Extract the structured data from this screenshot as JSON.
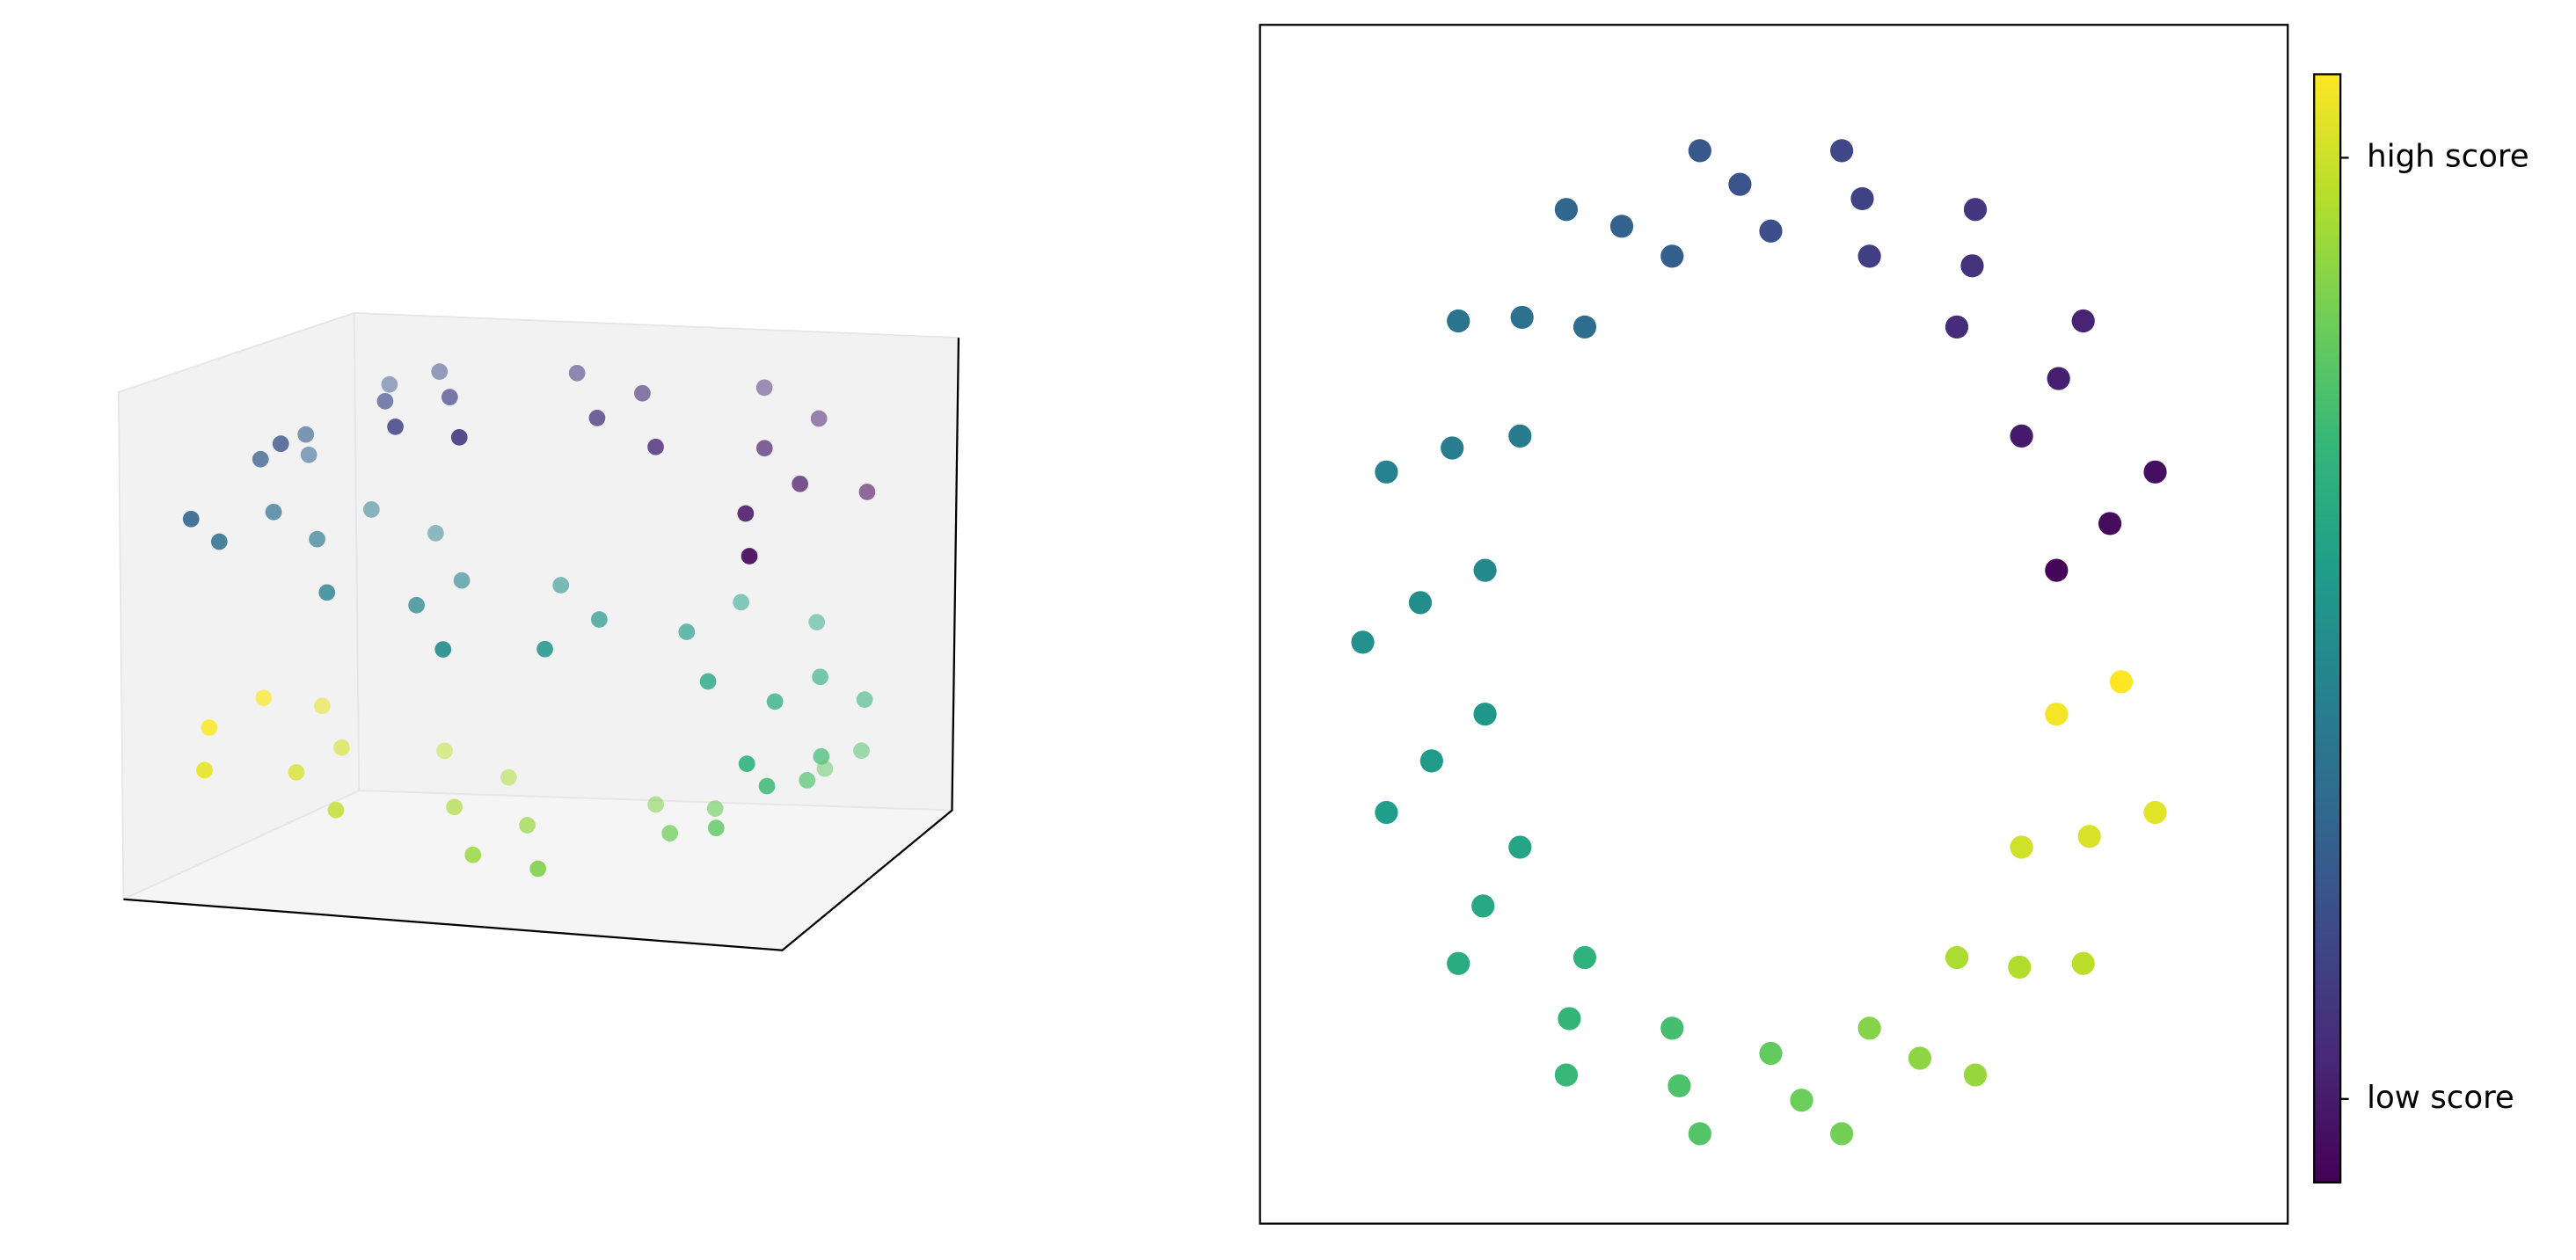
{
  "chart_data": [
    {
      "type": "scatter3d",
      "colormap": "viridis",
      "x": [
        0.994,
        0.994,
        0.916,
        0.916,
        0.757,
        0.757,
        0.53,
        0.53,
        0.256,
        0.256,
        -0.042,
        -0.042,
        -0.335,
        -0.335,
        -0.598,
        -0.598,
        -0.809,
        -0.809,
        -0.946,
        -0.946,
        -1.0,
        -1.0,
        -0.964,
        -0.964,
        -0.841,
        -0.841,
        -0.644,
        -0.644,
        -0.389,
        -0.389,
        -0.1,
        -0.1,
        0.199,
        0.199,
        0.479,
        0.479,
        0.717,
        0.717,
        0.891,
        0.891,
        0.985,
        0.985,
        0.992,
        0.992,
        0.909,
        0.909,
        0.746,
        0.746,
        0.516,
        0.516,
        0.239,
        0.239,
        -0.058,
        -0.058,
        -0.351,
        -0.351,
        -0.612,
        -0.612,
        -0.818,
        -0.818,
        -0.952,
        -0.952,
        -1.0,
        -1.0
      ],
      "y": [
        0.2,
        1.5,
        1.0,
        0.4,
        1.7,
        1.1,
        0.6,
        1.8,
        1.3,
        0.8,
        0.2,
        1.5,
        1.0,
        0.4,
        1.7,
        1.1,
        0.6,
        1.8,
        1.3,
        0.8,
        0.2,
        1.5,
        1.0,
        0.4,
        1.7,
        1.1,
        0.6,
        1.8,
        1.3,
        0.8,
        0.2,
        1.5,
        1.0,
        0.4,
        1.7,
        1.1,
        0.6,
        1.8,
        1.3,
        0.8,
        0.2,
        1.5,
        1.0,
        0.4,
        1.7,
        1.1,
        0.6,
        1.8,
        1.3,
        0.8,
        0.2,
        1.5,
        1.0,
        0.4,
        1.7,
        1.1,
        0.6,
        1.8,
        1.3,
        0.8,
        0.2,
        1.5,
        1.0,
        0.4
      ],
      "z": [
        1.112,
        1.112,
        1.401,
        1.401,
        1.654,
        1.654,
        1.848,
        1.848,
        1.967,
        1.967,
        1.999,
        1.999,
        1.942,
        1.942,
        1.801,
        1.801,
        1.589,
        1.589,
        1.323,
        1.323,
        1.029,
        1.029,
        0.733,
        0.733,
        0.46,
        0.46,
        0.235,
        0.235,
        0.079,
        0.079,
        0.005,
        0.005,
        -0.02,
        -0.02,
        -0.122,
        -0.122,
        -0.303,
        -0.303,
        -0.546,
        -0.546,
        -0.83,
        -0.83,
        -1.129,
        -1.129,
        -1.416,
        -1.416,
        -1.666,
        -1.666,
        -1.857,
        -1.857,
        -1.971,
        -1.971,
        -1.998,
        -1.998,
        -1.937,
        -1.937,
        -1.791,
        -1.791,
        -1.575,
        -1.575,
        -1.307,
        -1.307,
        -1.012,
        -1.012
      ],
      "c": [
        -4.6,
        -4.6,
        -4.3,
        -4.3,
        -4.0,
        -4.0,
        -3.7,
        -3.7,
        -3.4,
        -3.4,
        -3.1,
        -3.1,
        -2.8,
        -2.8,
        -2.5,
        -2.5,
        -2.2,
        -2.2,
        -1.9,
        -1.9,
        -1.6,
        -1.6,
        -1.3,
        -1.3,
        -1.0,
        -1.0,
        -0.7,
        -0.7,
        -0.4,
        -0.4,
        -0.1,
        -0.1,
        0.2,
        0.2,
        0.5,
        0.5,
        0.8,
        0.8,
        1.1,
        1.1,
        1.4,
        1.4,
        1.7,
        1.7,
        2.0,
        2.0,
        2.3,
        2.3,
        2.6,
        2.6,
        2.9,
        2.9,
        3.2,
        3.2,
        3.5,
        3.5,
        3.8,
        3.8,
        4.1,
        4.1,
        4.4,
        4.4,
        4.7,
        4.7
      ]
    },
    {
      "type": "scatter",
      "colormap": "viridis",
      "xlim": [
        0,
        100
      ],
      "ylim": [
        0,
        100
      ],
      "x": [
        77.5,
        82.7,
        87.1,
        74.1,
        77.7,
        80.1,
        67.8,
        69.3,
        69.6,
        59.3,
        58.6,
        56.6,
        49.7,
        46.7,
        42.8,
        40.1,
        35.2,
        29.8,
        31.6,
        25.5,
        19.3,
        25.3,
        18.7,
        12.3,
        21.9,
        15.6,
        10.0,
        21.9,
        16.7,
        12.3,
        25.3,
        21.7,
        19.3,
        31.6,
        30.1,
        29.8,
        40.1,
        40.8,
        42.8,
        49.7,
        52.7,
        56.6,
        59.3,
        64.2,
        69.6,
        67.8,
        73.9,
        80.1,
        74.1,
        80.7,
        87.1,
        77.5,
        83.8
      ],
      "y": [
        54.5,
        58.4,
        62.7,
        65.7,
        70.5,
        75.3,
        74.8,
        79.9,
        84.6,
        80.7,
        85.5,
        89.5,
        82.8,
        86.7,
        89.5,
        80.7,
        83.2,
        84.6,
        74.8,
        75.6,
        75.3,
        65.7,
        64.7,
        62.7,
        54.5,
        51.8,
        48.5,
        42.5,
        38.6,
        34.3,
        31.4,
        26.5,
        21.7,
        22.2,
        17.1,
        12.4,
        16.3,
        11.5,
        7.5,
        14.2,
        10.3,
        7.5,
        16.3,
        13.8,
        12.4,
        22.2,
        21.4,
        21.7,
        31.4,
        32.3,
        34.3,
        42.5,
        45.2
      ],
      "c": [
        -4.58,
        -4.44,
        -4.31,
        -4.04,
        -3.9,
        -3.77,
        -3.5,
        -3.36,
        -3.23,
        -2.96,
        -2.83,
        -2.69,
        -2.42,
        -2.29,
        -2.15,
        -1.88,
        -1.75,
        -1.61,
        -1.35,
        -1.21,
        -1.08,
        -0.81,
        -0.67,
        -0.54,
        -0.27,
        -0.13,
        0,
        0.27,
        0.4,
        0.54,
        0.81,
        0.94,
        1.08,
        1.35,
        1.48,
        1.61,
        1.88,
        2.02,
        2.15,
        2.42,
        2.56,
        2.69,
        2.96,
        3.09,
        3.23,
        3.5,
        3.63,
        3.77,
        4.04,
        4.17,
        4.31,
        4.58,
        4.71
      ],
      "colorbar": {
        "clim": [
          -4.71,
          4.71
        ],
        "ticks": [
          {
            "value": -4,
            "label": "low score"
          },
          {
            "value": 4,
            "label": "high score"
          }
        ]
      }
    }
  ]
}
